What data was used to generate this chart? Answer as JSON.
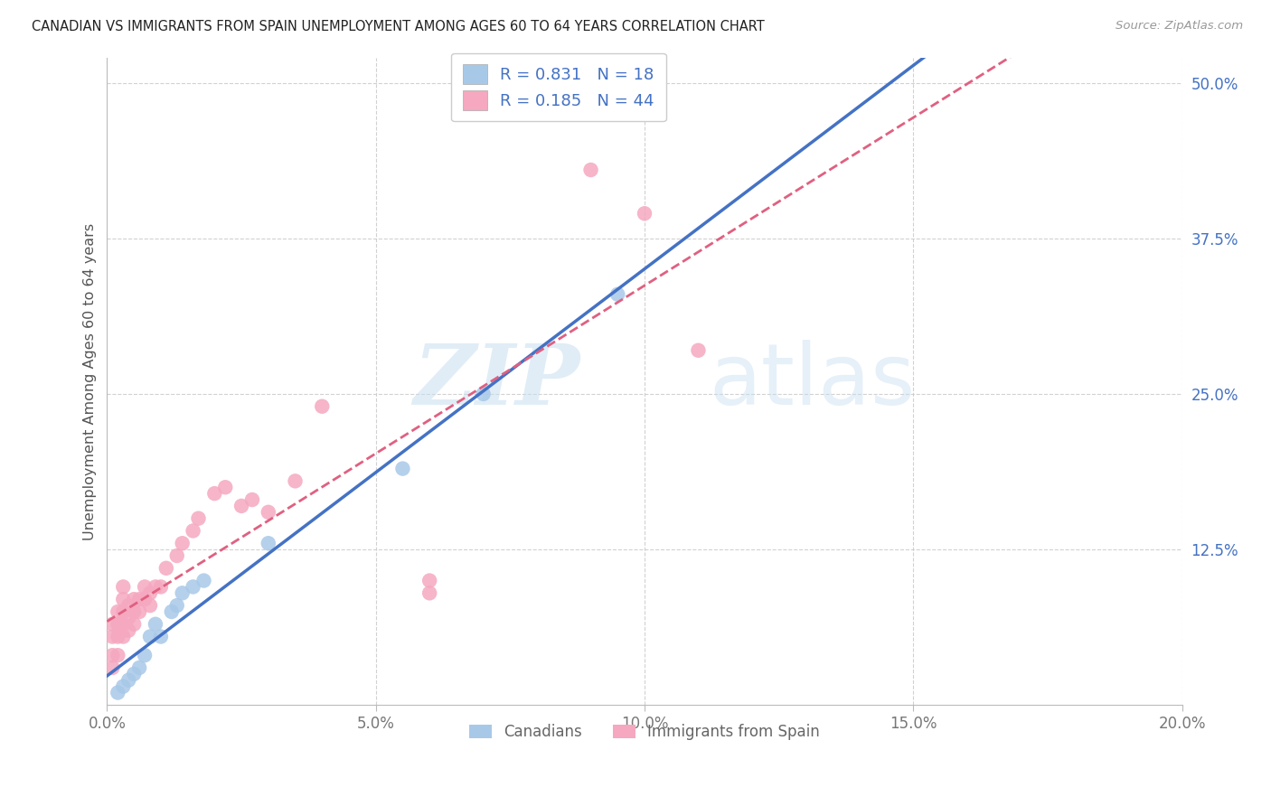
{
  "title": "CANADIAN VS IMMIGRANTS FROM SPAIN UNEMPLOYMENT AMONG AGES 60 TO 64 YEARS CORRELATION CHART",
  "source": "Source: ZipAtlas.com",
  "ylabel": "Unemployment Among Ages 60 to 64 years",
  "xlim": [
    0.0,
    0.2
  ],
  "ylim": [
    0.0,
    0.52
  ],
  "xticks": [
    0.0,
    0.05,
    0.1,
    0.15,
    0.2
  ],
  "yticks": [
    0.125,
    0.25,
    0.375,
    0.5
  ],
  "xtick_labels": [
    "0.0%",
    "5.0%",
    "10.0%",
    "15.0%",
    "20.0%"
  ],
  "ytick_labels": [
    "12.5%",
    "25.0%",
    "37.5%",
    "50.0%"
  ],
  "canadians_label": "Canadians",
  "immigrants_label": "Immigrants from Spain",
  "R_canadians": "0.831",
  "N_canadians": "18",
  "R_immigrants": "0.185",
  "N_immigrants": "44",
  "canadians_color": "#a8c8e8",
  "immigrants_color": "#f5a8c0",
  "canadians_line_color": "#4472c4",
  "immigrants_line_color": "#e06080",
  "watermark_zip": "ZIP",
  "watermark_atlas": "atlas",
  "canadians_x": [
    0.002,
    0.003,
    0.004,
    0.005,
    0.006,
    0.007,
    0.008,
    0.009,
    0.01,
    0.012,
    0.013,
    0.014,
    0.016,
    0.018,
    0.03,
    0.055,
    0.07,
    0.095
  ],
  "canadians_y": [
    0.01,
    0.015,
    0.02,
    0.025,
    0.03,
    0.04,
    0.055,
    0.065,
    0.055,
    0.075,
    0.08,
    0.09,
    0.095,
    0.1,
    0.13,
    0.19,
    0.25,
    0.33
  ],
  "immigrants_x": [
    0.001,
    0.001,
    0.001,
    0.001,
    0.002,
    0.002,
    0.002,
    0.002,
    0.003,
    0.003,
    0.003,
    0.003,
    0.003,
    0.004,
    0.004,
    0.004,
    0.005,
    0.005,
    0.005,
    0.006,
    0.006,
    0.007,
    0.007,
    0.008,
    0.008,
    0.009,
    0.01,
    0.011,
    0.013,
    0.014,
    0.016,
    0.017,
    0.02,
    0.022,
    0.025,
    0.027,
    0.03,
    0.035,
    0.04,
    0.06,
    0.06,
    0.09,
    0.1,
    0.11
  ],
  "immigrants_y": [
    0.03,
    0.04,
    0.055,
    0.065,
    0.04,
    0.055,
    0.065,
    0.075,
    0.055,
    0.065,
    0.075,
    0.085,
    0.095,
    0.06,
    0.07,
    0.08,
    0.065,
    0.075,
    0.085,
    0.075,
    0.085,
    0.085,
    0.095,
    0.08,
    0.09,
    0.095,
    0.095,
    0.11,
    0.12,
    0.13,
    0.14,
    0.15,
    0.17,
    0.175,
    0.16,
    0.165,
    0.155,
    0.18,
    0.24,
    0.09,
    0.1,
    0.43,
    0.395,
    0.285
  ]
}
